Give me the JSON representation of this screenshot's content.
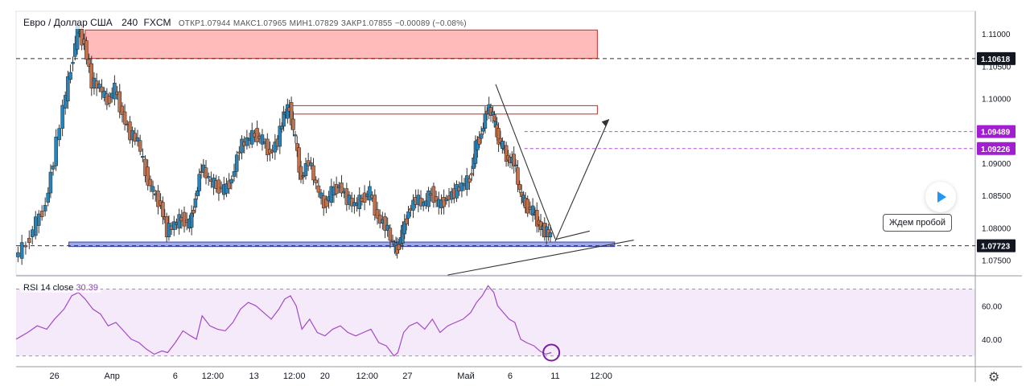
{
  "legend": {
    "pair": "Евро / Доллар США",
    "interval": "240",
    "source": "FXCM",
    "open_label": "ОТКР",
    "open": "1.07944",
    "high_label": "МАКС",
    "high": "1.07965",
    "low_label": "МИН",
    "low": "1.07829",
    "close_label": "ЗАКР",
    "close": "1.07855",
    "change": "−0.00089 (−0.08%)"
  },
  "rsi_legend": {
    "label": "RSI 14 close",
    "value": "30.39"
  },
  "annotation": "Ждем пробой",
  "colors": {
    "up": "#2a83b8",
    "down": "#c1734f",
    "rsi": "#a34ac4",
    "resistance_fill": "#ffb3b3",
    "support_fill": "#9fa8e8"
  },
  "icons": {
    "play": "play-icon",
    "settings": "gear-icon"
  },
  "chart_data": [
    {
      "type": "candlestick",
      "title": "Евро / Доллар США, 240, FXCM",
      "ylim": [
        1.0727,
        1.1135
      ],
      "y_ticks": [
        "1.11000",
        "1.10500",
        "1.10000",
        "1.09500",
        "1.09000",
        "1.08500",
        "1.08000",
        "1.07500"
      ],
      "y_tick_values": [
        1.11,
        1.105,
        1.1,
        1.095,
        1.09,
        1.085,
        1.08,
        1.075
      ],
      "price_tags": [
        {
          "label": "1.10618",
          "value": 1.10618,
          "style": "dark"
        },
        {
          "label": "1.09489",
          "value": 1.09489,
          "style": "purple"
        },
        {
          "label": "1.09226",
          "value": 1.09226,
          "style": "purple"
        },
        {
          "label": "1.07723",
          "value": 1.07723,
          "style": "dark"
        }
      ],
      "x_labels": [
        "26",
        "Апр",
        "6",
        "12:00",
        "13",
        "12:00",
        "20",
        "12:00",
        "27",
        "Май",
        "6",
        "11",
        "12:00"
      ],
      "x_label_positions": [
        0.04,
        0.1,
        0.166,
        0.205,
        0.248,
        0.29,
        0.322,
        0.366,
        0.408,
        0.469,
        0.515,
        0.562,
        0.61
      ],
      "close_path": [
        {
          "x": 0.0,
          "y": 1.0755
        },
        {
          "x": 0.012,
          "y": 1.0775
        },
        {
          "x": 0.022,
          "y": 1.0808
        },
        {
          "x": 0.032,
          "y": 1.0835
        },
        {
          "x": 0.04,
          "y": 1.0905
        },
        {
          "x": 0.05,
          "y": 1.0985
        },
        {
          "x": 0.058,
          "y": 1.1045
        },
        {
          "x": 0.065,
          "y": 1.1105
        },
        {
          "x": 0.072,
          "y": 1.1085
        },
        {
          "x": 0.08,
          "y": 1.1025
        },
        {
          "x": 0.088,
          "y": 1.1018
        },
        {
          "x": 0.096,
          "y": 1.0995
        },
        {
          "x": 0.104,
          "y": 1.1015
        },
        {
          "x": 0.112,
          "y": 1.0975
        },
        {
          "x": 0.12,
          "y": 1.0945
        },
        {
          "x": 0.128,
          "y": 1.0935
        },
        {
          "x": 0.136,
          "y": 1.0885
        },
        {
          "x": 0.144,
          "y": 1.0855
        },
        {
          "x": 0.152,
          "y": 1.0835
        },
        {
          "x": 0.158,
          "y": 1.0795
        },
        {
          "x": 0.166,
          "y": 1.0805
        },
        {
          "x": 0.174,
          "y": 1.0815
        },
        {
          "x": 0.182,
          "y": 1.0805
        },
        {
          "x": 0.188,
          "y": 1.0845
        },
        {
          "x": 0.194,
          "y": 1.0895
        },
        {
          "x": 0.202,
          "y": 1.0875
        },
        {
          "x": 0.21,
          "y": 1.0865
        },
        {
          "x": 0.218,
          "y": 1.0858
        },
        {
          "x": 0.226,
          "y": 1.0875
        },
        {
          "x": 0.234,
          "y": 1.0925
        },
        {
          "x": 0.242,
          "y": 1.0935
        },
        {
          "x": 0.25,
          "y": 1.0945
        },
        {
          "x": 0.258,
          "y": 1.0935
        },
        {
          "x": 0.266,
          "y": 1.0915
        },
        {
          "x": 0.274,
          "y": 1.0935
        },
        {
          "x": 0.28,
          "y": 1.0975
        },
        {
          "x": 0.286,
          "y": 1.0985
        },
        {
          "x": 0.292,
          "y": 1.0935
        },
        {
          "x": 0.298,
          "y": 1.0875
        },
        {
          "x": 0.306,
          "y": 1.0905
        },
        {
          "x": 0.314,
          "y": 1.0865
        },
        {
          "x": 0.322,
          "y": 1.0835
        },
        {
          "x": 0.33,
          "y": 1.0855
        },
        {
          "x": 0.338,
          "y": 1.0865
        },
        {
          "x": 0.346,
          "y": 1.0845
        },
        {
          "x": 0.354,
          "y": 1.0835
        },
        {
          "x": 0.362,
          "y": 1.0845
        },
        {
          "x": 0.37,
          "y": 1.0855
        },
        {
          "x": 0.378,
          "y": 1.0815
        },
        {
          "x": 0.386,
          "y": 1.0805
        },
        {
          "x": 0.394,
          "y": 1.0775
        },
        {
          "x": 0.398,
          "y": 1.0765
        },
        {
          "x": 0.404,
          "y": 1.0795
        },
        {
          "x": 0.41,
          "y": 1.0825
        },
        {
          "x": 0.418,
          "y": 1.0845
        },
        {
          "x": 0.426,
          "y": 1.0835
        },
        {
          "x": 0.434,
          "y": 1.0855
        },
        {
          "x": 0.442,
          "y": 1.0835
        },
        {
          "x": 0.45,
          "y": 1.0845
        },
        {
          "x": 0.458,
          "y": 1.0855
        },
        {
          "x": 0.466,
          "y": 1.0865
        },
        {
          "x": 0.474,
          "y": 1.0875
        },
        {
          "x": 0.48,
          "y": 1.0925
        },
        {
          "x": 0.486,
          "y": 1.0945
        },
        {
          "x": 0.492,
          "y": 1.0985
        },
        {
          "x": 0.498,
          "y": 1.0975
        },
        {
          "x": 0.502,
          "y": 1.0945
        },
        {
          "x": 0.508,
          "y": 1.0925
        },
        {
          "x": 0.514,
          "y": 1.0905
        },
        {
          "x": 0.52,
          "y": 1.0905
        },
        {
          "x": 0.526,
          "y": 1.0855
        },
        {
          "x": 0.532,
          "y": 1.0835
        },
        {
          "x": 0.54,
          "y": 1.0825
        },
        {
          "x": 0.546,
          "y": 1.0805
        },
        {
          "x": 0.552,
          "y": 1.0795
        },
        {
          "x": 0.558,
          "y": 1.0788
        }
      ],
      "zones": [
        {
          "name": "resistance",
          "y_top": 1.1106,
          "y_bottom": 1.1062,
          "x_start": 0.072,
          "x_end": 0.606
        },
        {
          "name": "top-range",
          "y_top": 1.0989,
          "y_bottom": 1.0976,
          "x_start": 0.285,
          "x_end": 0.606
        },
        {
          "name": "support",
          "y_top": 1.0778,
          "y_bottom": 1.0771,
          "x_start": 0.055,
          "x_end": 0.624
        }
      ],
      "drawings": [
        {
          "name": "descending-trendline",
          "points": [
            {
              "x": 0.5,
              "y": 1.1022
            },
            {
              "x": 0.562,
              "y": 1.0783
            }
          ]
        },
        {
          "name": "ascending-trendline",
          "points": [
            {
              "x": 0.45,
              "y": 1.0727
            },
            {
              "x": 0.644,
              "y": 1.0781
            }
          ]
        },
        {
          "name": "forecast-arrow",
          "points": [
            {
              "x": 0.562,
              "y": 1.0779
            },
            {
              "x": 0.618,
              "y": 1.0968
            }
          ]
        },
        {
          "name": "callout-leader",
          "points": [
            {
              "x": 0.562,
              "y": 1.0782
            },
            {
              "x": 0.598,
              "y": 1.0795
            }
          ]
        }
      ]
    },
    {
      "type": "line",
      "title": "RSI 14 close",
      "ylim": [
        25,
        76
      ],
      "y_ticks": [
        "60.00",
        "40.00"
      ],
      "y_tick_values": [
        60,
        40
      ],
      "band": [
        30,
        70
      ],
      "x": [
        0.0,
        0.012,
        0.022,
        0.032,
        0.04,
        0.05,
        0.058,
        0.065,
        0.072,
        0.08,
        0.088,
        0.096,
        0.104,
        0.112,
        0.12,
        0.128,
        0.136,
        0.144,
        0.152,
        0.158,
        0.166,
        0.174,
        0.182,
        0.188,
        0.194,
        0.202,
        0.21,
        0.218,
        0.226,
        0.234,
        0.242,
        0.25,
        0.258,
        0.266,
        0.274,
        0.28,
        0.286,
        0.292,
        0.298,
        0.306,
        0.314,
        0.322,
        0.33,
        0.338,
        0.346,
        0.354,
        0.362,
        0.37,
        0.378,
        0.386,
        0.394,
        0.398,
        0.404,
        0.41,
        0.418,
        0.426,
        0.434,
        0.442,
        0.45,
        0.458,
        0.466,
        0.474,
        0.48,
        0.486,
        0.492,
        0.498,
        0.502,
        0.508,
        0.514,
        0.52,
        0.526,
        0.532,
        0.54,
        0.546,
        0.552,
        0.558
      ],
      "values": [
        40,
        44,
        48,
        46,
        52,
        58,
        66,
        68,
        64,
        58,
        55,
        48,
        50,
        45,
        40,
        38,
        34,
        31,
        33,
        32,
        38,
        45,
        42,
        40,
        54,
        48,
        46,
        45,
        50,
        58,
        62,
        60,
        56,
        52,
        58,
        64,
        66,
        60,
        46,
        52,
        44,
        42,
        46,
        48,
        44,
        42,
        44,
        46,
        38,
        36,
        30,
        32,
        44,
        48,
        50,
        46,
        52,
        44,
        48,
        50,
        52,
        56,
        62,
        66,
        72,
        68,
        60,
        56,
        52,
        50,
        40,
        38,
        36,
        33,
        31,
        32
      ]
    }
  ]
}
